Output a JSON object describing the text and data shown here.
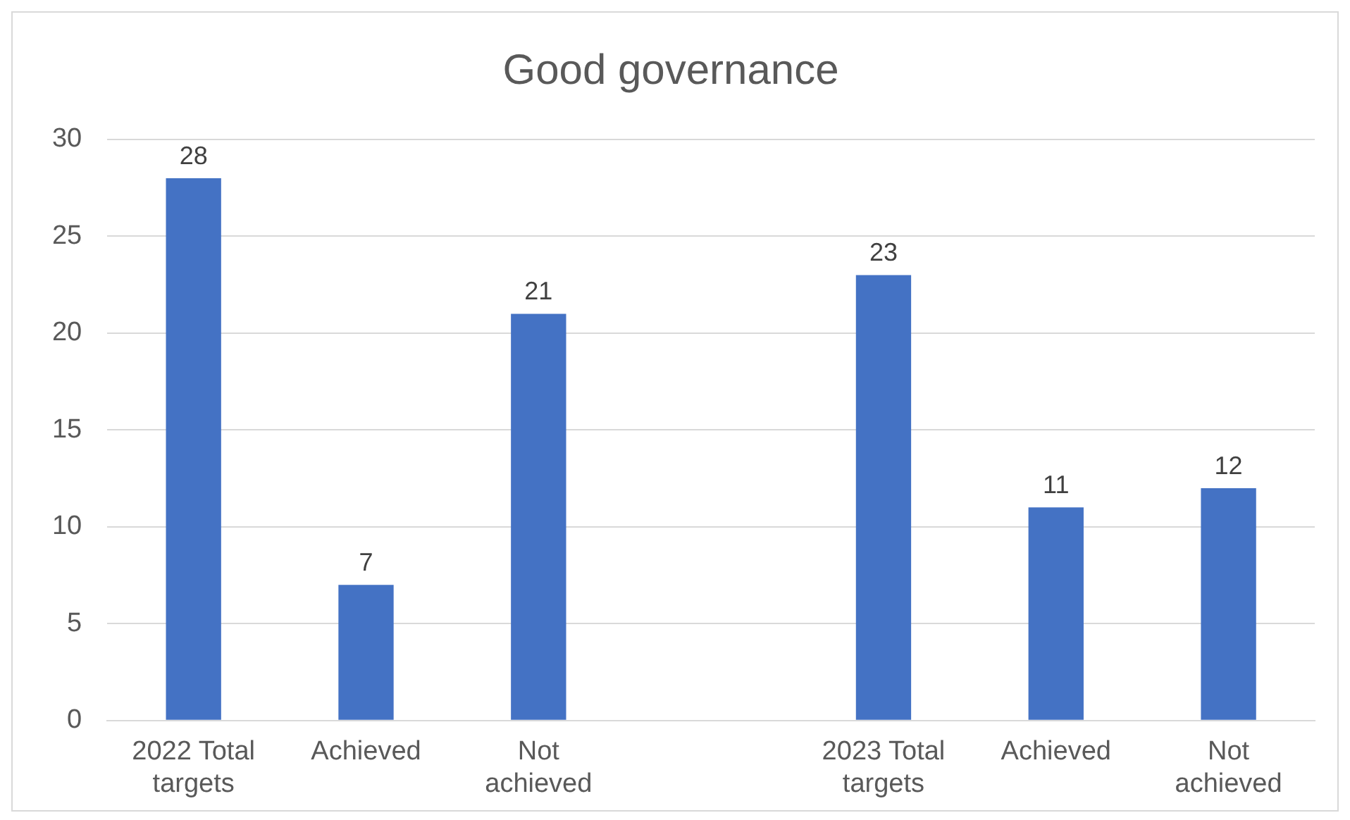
{
  "chart_data": {
    "type": "bar",
    "title": "Good governance",
    "categories": [
      "2022 Total targets",
      "Achieved",
      "Not achieved",
      null,
      "2023 Total targets",
      "Achieved",
      "Not achieved"
    ],
    "values": [
      28,
      7,
      21,
      null,
      23,
      11,
      12
    ],
    "color": "#4472c4",
    "ylim": [
      0,
      30
    ],
    "yticks": [
      0,
      5,
      10,
      15,
      20,
      25,
      30
    ],
    "grid": "y",
    "data_labels": true,
    "legend": false
  }
}
